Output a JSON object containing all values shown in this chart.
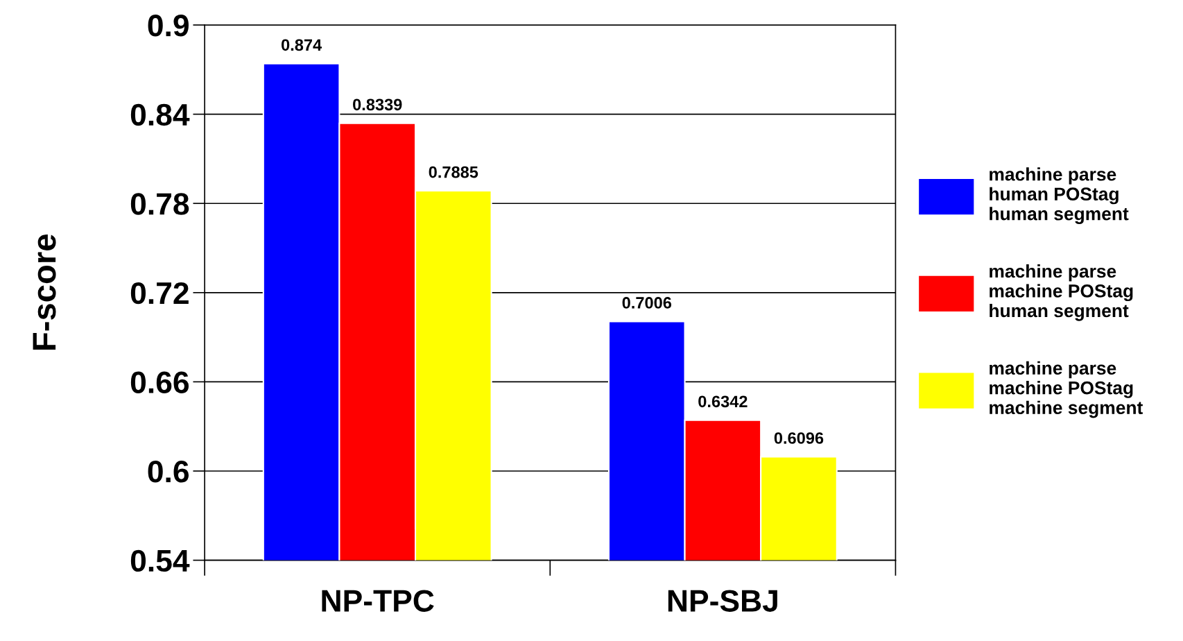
{
  "chart_data": {
    "type": "bar",
    "ylabel": "F-score",
    "categories": [
      "NP-TPC",
      "NP-SBJ"
    ],
    "series": [
      {
        "name": "machine parse\nhuman POStag\nhuman segment",
        "color": "#0000ff",
        "values": [
          0.874,
          0.7006
        ]
      },
      {
        "name": "machine parse\nmachine POStag\nhuman segment",
        "color": "#ff0000",
        "values": [
          0.8339,
          0.6342
        ]
      },
      {
        "name": "machine parse\nmachine POStag\nmachine segment",
        "color": "#ffff00",
        "values": [
          0.7885,
          0.6096
        ]
      }
    ],
    "ylim": [
      0.54,
      0.9
    ],
    "yticks": [
      0.54,
      0.6,
      0.66,
      0.72,
      0.78,
      0.84,
      0.9
    ],
    "grid": "y",
    "legend": "right",
    "data_labels": true
  }
}
